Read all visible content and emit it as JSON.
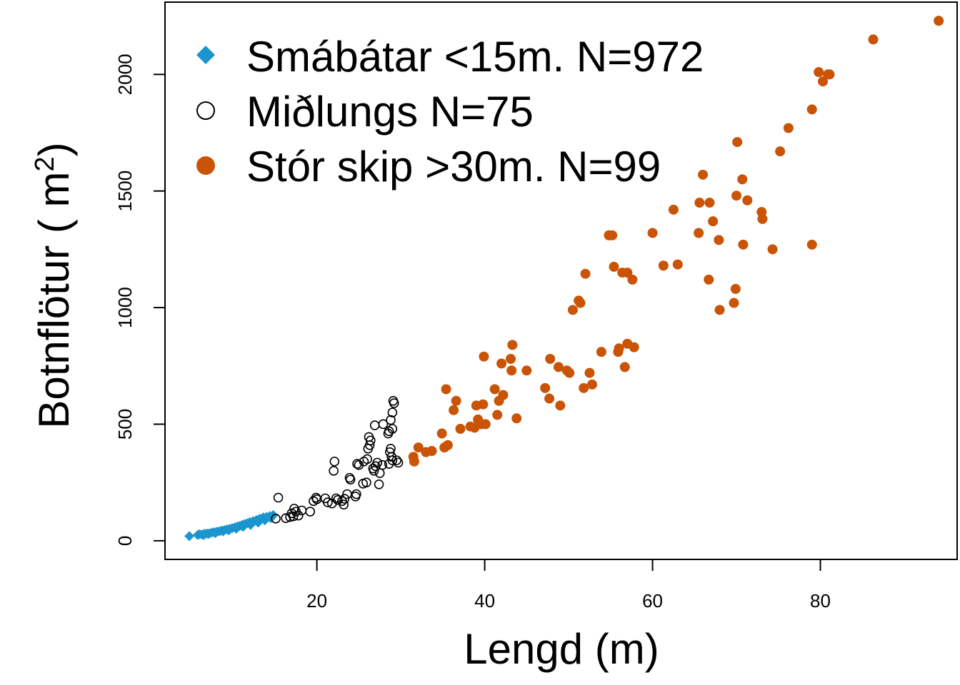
{
  "chart_data": {
    "type": "scatter",
    "xlabel": "Lengd (m)",
    "ylabel_main": "Botnflötur ( m",
    "ylabel_sup": "2",
    "ylabel_close": ")",
    "xlim": [
      1.9,
      96.3
    ],
    "ylim": [
      -80,
      2310
    ],
    "x_ticks": [
      20,
      40,
      60,
      80
    ],
    "y_ticks": [
      0,
      500,
      1000,
      1500,
      2000
    ],
    "legend_position": "top-left",
    "colors": {
      "small": "#1a95cd",
      "medium": "#000000",
      "large": "#c95405"
    },
    "legend": [
      {
        "label": "Smábátar <15m. N=972",
        "marker": "diamond",
        "color": "#1a95cd"
      },
      {
        "label": "Miðlungs N=75",
        "marker": "open-circle",
        "color": "#000000"
      },
      {
        "label": "Stór skip >30m. N=99",
        "marker": "filled-circle",
        "color": "#c95405"
      }
    ],
    "series": [
      {
        "name": "Smábátar <15m. N=972",
        "marker": "diamond",
        "color": "#1a95cd",
        "points": [
          [
            4.8,
            20
          ],
          [
            5.8,
            25
          ],
          [
            6.0,
            28
          ],
          [
            6.3,
            27
          ],
          [
            6.6,
            30
          ],
          [
            6.9,
            31
          ],
          [
            7.2,
            32
          ],
          [
            7.5,
            35
          ],
          [
            7.8,
            37
          ],
          [
            8.1,
            39
          ],
          [
            8.4,
            41
          ],
          [
            8.7,
            44
          ],
          [
            9.0,
            46
          ],
          [
            9.3,
            49
          ],
          [
            9.6,
            51
          ],
          [
            9.9,
            54
          ],
          [
            10.2,
            57
          ],
          [
            10.5,
            61
          ],
          [
            10.8,
            64
          ],
          [
            11.1,
            68
          ],
          [
            11.4,
            72
          ],
          [
            11.7,
            75
          ],
          [
            12.0,
            80
          ],
          [
            12.4,
            84
          ],
          [
            12.8,
            89
          ],
          [
            13.2,
            95
          ],
          [
            13.6,
            100
          ],
          [
            14.0,
            102
          ],
          [
            14.4,
            106
          ],
          [
            14.8,
            110
          ],
          [
            6.5,
            24
          ],
          [
            7.1,
            29
          ],
          [
            7.9,
            33
          ],
          [
            8.8,
            40
          ],
          [
            9.5,
            45
          ],
          [
            10.4,
            52
          ],
          [
            11.2,
            60
          ],
          [
            12.1,
            68
          ],
          [
            13.0,
            78
          ],
          [
            13.8,
            88
          ],
          [
            14.5,
            97
          ]
        ]
      },
      {
        "name": "Miðlungs N=75",
        "marker": "open-circle",
        "color": "#000000",
        "points": [
          [
            15.1,
            95
          ],
          [
            15.4,
            185
          ],
          [
            16.3,
            97
          ],
          [
            16.8,
            102
          ],
          [
            17.0,
            118
          ],
          [
            17.2,
            105
          ],
          [
            17.3,
            138
          ],
          [
            17.5,
            125
          ],
          [
            17.8,
            108
          ],
          [
            18.2,
            130
          ],
          [
            19.2,
            125
          ],
          [
            19.6,
            170
          ],
          [
            19.9,
            185
          ],
          [
            20.0,
            178
          ],
          [
            21.0,
            182
          ],
          [
            21.3,
            165
          ],
          [
            21.8,
            160
          ],
          [
            22.0,
            300
          ],
          [
            22.1,
            340
          ],
          [
            22.3,
            182
          ],
          [
            22.5,
            175
          ],
          [
            23.0,
            170
          ],
          [
            23.2,
            155
          ],
          [
            23.3,
            180
          ],
          [
            23.6,
            200
          ],
          [
            23.9,
            270
          ],
          [
            24.0,
            262
          ],
          [
            24.6,
            190
          ],
          [
            24.7,
            200
          ],
          [
            24.8,
            330
          ],
          [
            25.0,
            325
          ],
          [
            25.5,
            245
          ],
          [
            25.6,
            340
          ],
          [
            25.9,
            250
          ],
          [
            26.0,
            350
          ],
          [
            26.1,
            395
          ],
          [
            26.2,
            445
          ],
          [
            26.3,
            410
          ],
          [
            26.4,
            430
          ],
          [
            26.7,
            310
          ],
          [
            26.8,
            300
          ],
          [
            26.9,
            495
          ],
          [
            27.0,
            320
          ],
          [
            27.2,
            335
          ],
          [
            27.4,
            242
          ],
          [
            27.5,
            290
          ],
          [
            27.8,
            325
          ],
          [
            27.9,
            500
          ],
          [
            28.5,
            460
          ],
          [
            28.6,
            330
          ],
          [
            28.7,
            380
          ],
          [
            28.8,
            395
          ],
          [
            28.9,
            360
          ],
          [
            29.0,
            345
          ],
          [
            29.0,
            480
          ],
          [
            29.1,
            600
          ],
          [
            29.2,
            590
          ],
          [
            28.8,
            518
          ],
          [
            29.0,
            550
          ],
          [
            28.6,
            470
          ],
          [
            29.5,
            345
          ],
          [
            29.7,
            335
          ]
        ]
      },
      {
        "name": "Stór skip >30m. N=99",
        "marker": "filled-circle",
        "color": "#c95405",
        "points": [
          [
            31.5,
            360
          ],
          [
            31.6,
            340
          ],
          [
            32.1,
            400
          ],
          [
            33.0,
            380
          ],
          [
            33.7,
            385
          ],
          [
            34.9,
            460
          ],
          [
            35.2,
            400
          ],
          [
            35.4,
            650
          ],
          [
            35.6,
            410
          ],
          [
            36.3,
            560
          ],
          [
            36.6,
            600
          ],
          [
            37.1,
            480
          ],
          [
            38.3,
            490
          ],
          [
            38.8,
            485
          ],
          [
            39.0,
            580
          ],
          [
            39.2,
            520
          ],
          [
            39.6,
            500
          ],
          [
            39.8,
            585
          ],
          [
            39.9,
            790
          ],
          [
            40.1,
            500
          ],
          [
            41.2,
            650
          ],
          [
            41.5,
            540
          ],
          [
            41.7,
            600
          ],
          [
            42.0,
            760
          ],
          [
            42.2,
            625
          ],
          [
            43.1,
            780
          ],
          [
            43.2,
            730
          ],
          [
            43.3,
            840
          ],
          [
            43.8,
            525
          ],
          [
            45.0,
            730
          ],
          [
            47.2,
            655
          ],
          [
            47.7,
            610
          ],
          [
            47.8,
            780
          ],
          [
            48.8,
            745
          ],
          [
            49.0,
            580
          ],
          [
            49.8,
            730
          ],
          [
            50.1,
            720
          ],
          [
            50.5,
            990
          ],
          [
            51.2,
            1030
          ],
          [
            51.4,
            1020
          ],
          [
            51.8,
            655
          ],
          [
            52.0,
            1145
          ],
          [
            52.5,
            720
          ],
          [
            52.8,
            670
          ],
          [
            53.9,
            810
          ],
          [
            54.8,
            1310
          ],
          [
            55.2,
            1310
          ],
          [
            55.4,
            1175
          ],
          [
            55.9,
            810
          ],
          [
            56.0,
            825
          ],
          [
            56.4,
            1150
          ],
          [
            56.7,
            745
          ],
          [
            57.0,
            1150
          ],
          [
            57.0,
            845
          ],
          [
            57.6,
            1120
          ],
          [
            57.8,
            830
          ],
          [
            60.0,
            1320
          ],
          [
            61.3,
            1180
          ],
          [
            62.5,
            1420
          ],
          [
            63.0,
            1185
          ],
          [
            65.5,
            1320
          ],
          [
            65.6,
            1450
          ],
          [
            66.0,
            1570
          ],
          [
            66.7,
            1120
          ],
          [
            66.8,
            1450
          ],
          [
            67.2,
            1370
          ],
          [
            67.9,
            1290
          ],
          [
            68.0,
            990
          ],
          [
            69.7,
            1020
          ],
          [
            69.9,
            1080
          ],
          [
            70.0,
            1480
          ],
          [
            70.1,
            1710
          ],
          [
            70.7,
            1550
          ],
          [
            70.8,
            1270
          ],
          [
            71.3,
            1460
          ],
          [
            73.0,
            1410
          ],
          [
            73.1,
            1380
          ],
          [
            74.3,
            1250
          ],
          [
            75.2,
            1670
          ],
          [
            76.2,
            1770
          ],
          [
            79.0,
            1270
          ],
          [
            79.0,
            1850
          ],
          [
            79.8,
            2010
          ],
          [
            80.3,
            1970
          ],
          [
            80.9,
            2000
          ],
          [
            81.1,
            2000
          ],
          [
            86.3,
            2150
          ],
          [
            94.1,
            2230
          ]
        ]
      }
    ]
  }
}
